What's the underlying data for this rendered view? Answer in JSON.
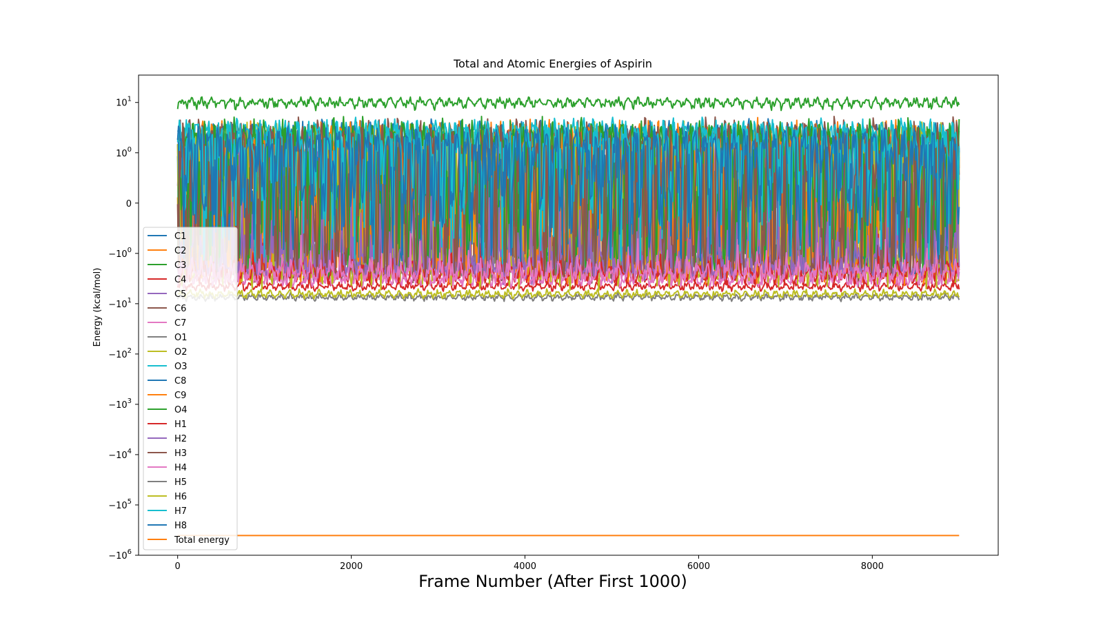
{
  "chart_data": {
    "type": "line",
    "title": "Total and Atomic Energies of Aspirin",
    "xlabel": "Frame Number (After First 1000)",
    "ylabel": "Energy (kcal/mol)",
    "yscale": "symlog",
    "xlim": [
      -450,
      9450
    ],
    "ylim": [
      -1000000,
      35
    ],
    "x_ticks": [
      0,
      2000,
      4000,
      6000,
      8000
    ],
    "x_tick_labels": [
      "0",
      "2000",
      "4000",
      "6000",
      "8000"
    ],
    "y_ticks": [
      10,
      1,
      0,
      -1,
      -10,
      -100,
      -1000,
      -10000,
      -100000,
      -1000000
    ],
    "y_tick_labels": [
      {
        "base": "10",
        "exp": "1"
      },
      {
        "base": "10",
        "exp": "0"
      },
      {
        "base": "0",
        "exp": ""
      },
      {
        "base": "−10",
        "exp": "0"
      },
      {
        "base": "−10",
        "exp": "1"
      },
      {
        "base": "−10",
        "exp": "2"
      },
      {
        "base": "−10",
        "exp": "3"
      },
      {
        "base": "−10",
        "exp": "4"
      },
      {
        "base": "−10",
        "exp": "5"
      },
      {
        "base": "−10",
        "exp": "6"
      }
    ],
    "x_range": [
      0,
      9000
    ],
    "legend_position": "lower-left",
    "grid": false,
    "series": [
      {
        "name": "C1",
        "color": "#1f77b4",
        "mean": 1.0,
        "amplitude": 3.0
      },
      {
        "name": "C2",
        "color": "#ff7f0e",
        "mean": 0.5,
        "amplitude": 3.5
      },
      {
        "name": "C3",
        "color": "#2ca02c",
        "mean": 10.0,
        "amplitude": 2.5
      },
      {
        "name": "C4",
        "color": "#d62728",
        "mean": -4.5,
        "amplitude": 1.0
      },
      {
        "name": "C5",
        "color": "#9467bd",
        "mean": -0.5,
        "amplitude": 3.0
      },
      {
        "name": "C6",
        "color": "#8c564b",
        "mean": 0.5,
        "amplitude": 4.0
      },
      {
        "name": "C7",
        "color": "#e377c2",
        "mean": -3.0,
        "amplitude": 1.5
      },
      {
        "name": "O1",
        "color": "#7f7f7f",
        "mean": -1.5,
        "amplitude": 1.2
      },
      {
        "name": "O2",
        "color": "#bcbd22",
        "mean": -0.5,
        "amplitude": 4.0
      },
      {
        "name": "O3",
        "color": "#17becf",
        "mean": 2.0,
        "amplitude": 2.5
      },
      {
        "name": "C8",
        "color": "#1f77b4",
        "mean": 0.3,
        "amplitude": 2.5
      },
      {
        "name": "C9",
        "color": "#ff7f0e",
        "mean": -0.5,
        "amplitude": 3.0
      },
      {
        "name": "O4",
        "color": "#2ca02c",
        "mean": 1.0,
        "amplitude": 3.5
      },
      {
        "name": "H1",
        "color": "#d62728",
        "mean": -2.5,
        "amplitude": 1.5
      },
      {
        "name": "H2",
        "color": "#9467bd",
        "mean": -1.5,
        "amplitude": 1.5
      },
      {
        "name": "H3",
        "color": "#8c564b",
        "mean": 0.5,
        "amplitude": 3.0
      },
      {
        "name": "H4",
        "color": "#e377c2",
        "mean": -2.5,
        "amplitude": 1.5
      },
      {
        "name": "H5",
        "color": "#7f7f7f",
        "mean": -7.5,
        "amplitude": 1.2
      },
      {
        "name": "H6",
        "color": "#bcbd22",
        "mean": -6.5,
        "amplitude": 1.2
      },
      {
        "name": "H7",
        "color": "#17becf",
        "mean": 1.5,
        "amplitude": 2.5
      },
      {
        "name": "H8",
        "color": "#1f77b4",
        "mean": 1.0,
        "amplitude": 2.0
      },
      {
        "name": "Total energy",
        "color": "#ff7f0e",
        "mean": -406000,
        "amplitude": 0
      }
    ]
  }
}
